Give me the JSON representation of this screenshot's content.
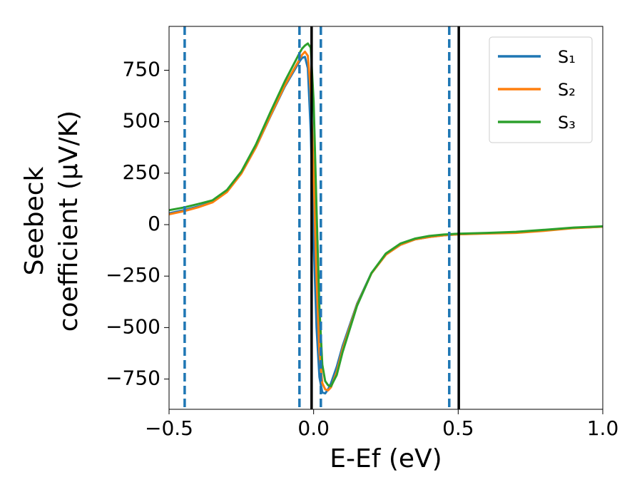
{
  "chart_data": {
    "type": "line",
    "xlabel": "E-Ef (eV)",
    "ylabel": [
      "Seebeck",
      "coefficient  (μV/K)"
    ],
    "xlim": [
      -0.5,
      1.0
    ],
    "ylim": [
      -897,
      963
    ],
    "xticks": [
      {
        "value": -0.5,
        "label": "−0.5"
      },
      {
        "value": 0.0,
        "label": "0.0"
      },
      {
        "value": 0.5,
        "label": "0.5"
      },
      {
        "value": 1.0,
        "label": "1.0"
      }
    ],
    "yticks": [
      {
        "value": -750,
        "label": "−750"
      },
      {
        "value": -500,
        "label": "−500"
      },
      {
        "value": -250,
        "label": "−250"
      },
      0,
      250,
      500,
      750
    ],
    "grid": false,
    "legend": "upper right",
    "x": [
      -0.5,
      -0.45,
      -0.4,
      -0.35,
      -0.3,
      -0.25,
      -0.2,
      -0.15,
      -0.1,
      -0.05,
      -0.04,
      -0.03,
      -0.02,
      -0.01,
      0,
      0.01,
      0.02,
      0.03,
      0.04,
      0.05,
      0.06,
      0.08,
      0.1,
      0.15,
      0.2,
      0.25,
      0.3,
      0.35,
      0.4,
      0.45,
      0.5,
      0.6,
      0.7,
      0.8,
      0.9,
      1.0
    ],
    "series": [
      {
        "name": "S₁",
        "color": "#1f77b4",
        "values": [
          55,
          70,
          88,
          110,
          160,
          250,
          375,
          525,
          670,
          790,
          810,
          815,
          760,
          450,
          -80,
          -500,
          -740,
          -815,
          -820,
          -800,
          -770,
          -690,
          -590,
          -385,
          -235,
          -145,
          -98,
          -72,
          -60,
          -52,
          -47,
          -42,
          -38,
          -28,
          -16,
          -10
        ]
      },
      {
        "name": "S₂",
        "color": "#ff7f0e",
        "values": [
          50,
          65,
          84,
          108,
          158,
          248,
          375,
          528,
          675,
          800,
          825,
          840,
          820,
          650,
          250,
          -250,
          -620,
          -770,
          -800,
          -805,
          -790,
          -715,
          -605,
          -390,
          -237,
          -146,
          -98,
          -72,
          -60,
          -52,
          -47,
          -43,
          -40,
          -30,
          -17,
          -10
        ]
      },
      {
        "name": "S₃",
        "color": "#2ca02c",
        "values": [
          70,
          83,
          100,
          118,
          168,
          258,
          388,
          545,
          695,
          830,
          855,
          870,
          880,
          860,
          600,
          80,
          -400,
          -680,
          -760,
          -780,
          -785,
          -730,
          -620,
          -395,
          -235,
          -140,
          -92,
          -68,
          -55,
          -48,
          -44,
          -40,
          -35,
          -25,
          -14,
          -8
        ]
      }
    ],
    "vlines": [
      {
        "x": -0.446,
        "color": "#1f77b4",
        "style": "dashed"
      },
      {
        "x": -0.049,
        "color": "#1f77b4",
        "style": "dashed"
      },
      {
        "x": 0.025,
        "color": "#1f77b4",
        "style": "dashed"
      },
      {
        "x": 0.469,
        "color": "#1f77b4",
        "style": "dashed"
      },
      {
        "x": -0.007,
        "color": "#000000",
        "style": "solid"
      },
      {
        "x": 0.502,
        "color": "#000000",
        "style": "solid"
      }
    ]
  }
}
